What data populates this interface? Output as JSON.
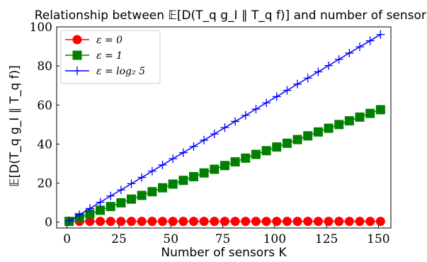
{
  "chart_data": {
    "type": "line",
    "title": "Relationship between 𝔼[D(T_q g_I ∥ T_q f)] and number of sensors K",
    "xlabel": "Number of sensors K",
    "ylabel": "𝔼[D(T_q g_I ∥ T_q f)]",
    "xlim": [
      -5,
      156
    ],
    "ylim": [
      -3,
      100
    ],
    "xticks": [
      0,
      25,
      50,
      75,
      100,
      125,
      150
    ],
    "yticks": [
      0,
      20,
      40,
      60,
      80,
      100
    ],
    "grid": false,
    "legend_position": "top-left",
    "x": [
      1,
      6,
      11,
      16,
      21,
      26,
      31,
      36,
      41,
      46,
      51,
      56,
      61,
      66,
      71,
      76,
      81,
      86,
      91,
      96,
      101,
      106,
      111,
      116,
      121,
      126,
      131,
      136,
      141,
      146,
      151
    ],
    "series": [
      {
        "name": "ε = 0",
        "color": "#ff0000",
        "marker": "circle",
        "values": [
          0.4,
          0.4,
          0.4,
          0.4,
          0.4,
          0.4,
          0.4,
          0.4,
          0.4,
          0.4,
          0.4,
          0.4,
          0.4,
          0.4,
          0.4,
          0.4,
          0.4,
          0.4,
          0.4,
          0.4,
          0.4,
          0.4,
          0.4,
          0.4,
          0.4,
          0.4,
          0.4,
          0.4,
          0.4,
          0.4,
          0.4
        ]
      },
      {
        "name": "ε = 1",
        "color": "#008000",
        "marker": "square",
        "values": [
          0.4,
          2.3,
          4.2,
          6.1,
          8.0,
          9.9,
          11.8,
          13.7,
          15.6,
          17.6,
          19.5,
          21.4,
          23.3,
          25.2,
          27.1,
          29.0,
          30.9,
          32.8,
          34.7,
          36.6,
          38.5,
          40.4,
          42.3,
          44.2,
          46.2,
          48.1,
          50.0,
          51.9,
          53.8,
          55.7,
          57.6
        ]
      },
      {
        "name": "ε = log₂ 5",
        "color": "#0000ff",
        "marker": "plus",
        "values": [
          0.6,
          3.8,
          7.0,
          10.2,
          13.4,
          16.5,
          19.7,
          22.9,
          26.1,
          29.3,
          32.5,
          35.6,
          38.8,
          42.0,
          45.2,
          48.4,
          51.6,
          54.7,
          57.9,
          61.1,
          64.3,
          67.5,
          70.7,
          73.8,
          77.0,
          80.2,
          83.4,
          86.6,
          89.8,
          92.9,
          96.1
        ]
      }
    ]
  }
}
